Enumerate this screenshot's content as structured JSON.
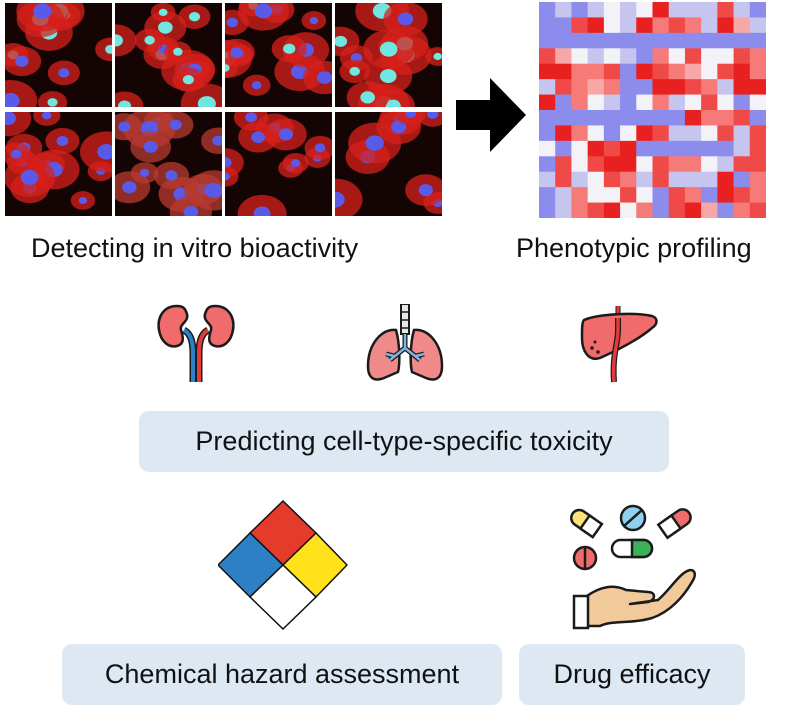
{
  "captions": {
    "bioactivity": "Detecting in vitro bioactivity",
    "profiling": "Phenotypic profiling"
  },
  "boxes": {
    "toxicity": "Predicting cell-type-specific toxicity",
    "hazard": "Chemical hazard assessment",
    "efficacy": "Drug efficacy"
  },
  "icons": {
    "micrograph_grid": "fluorescence-cell-images",
    "arrow": "arrow-right-icon",
    "heatmap": "heatmap-icon",
    "kidney": "kidney-icon",
    "lungs": "lungs-icon",
    "liver": "liver-icon",
    "hazard_diamond": "hazard-diamond-icon",
    "pills": "pills-hand-icon"
  },
  "colors": {
    "box_bg": "#dde8f3",
    "heat_red": "#e8201f",
    "heat_blue": "#1515e0",
    "hazard_blue": "#2f7fc4",
    "hazard_red": "#e53b2b",
    "hazard_yellow": "#ffe21a"
  }
}
